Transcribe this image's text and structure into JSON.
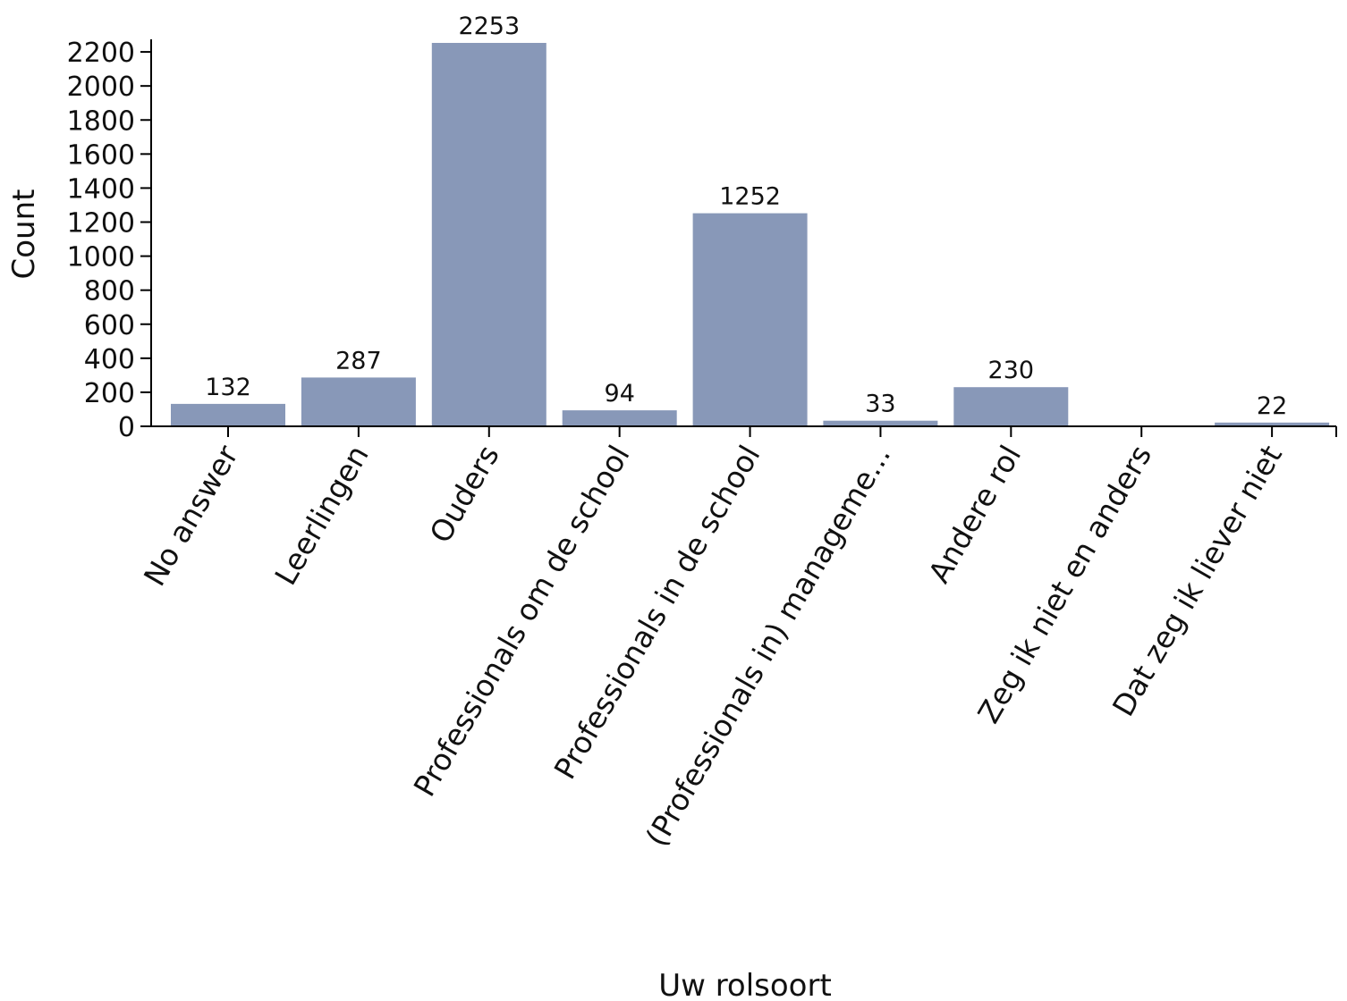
{
  "chart_data": {
    "type": "bar",
    "xlabel": "Uw rolsoort",
    "ylabel": "Count",
    "categories": [
      "No answer",
      "Leerlingen",
      "Ouders",
      "Professionals om de school",
      "Professionals in de school",
      "(Professionals in) manageme...",
      "Andere rol",
      "Zeg ik niet en anders",
      "Dat zeg ik liever niet"
    ],
    "values": [
      132,
      287,
      2253,
      94,
      1252,
      33,
      230,
      0,
      22
    ],
    "data_labels": [
      "132",
      "287",
      "2253",
      "94",
      "1252",
      "33",
      "230",
      "",
      "22"
    ],
    "ylim": [
      0,
      2253
    ],
    "yticks": [
      0,
      200,
      400,
      600,
      800,
      1000,
      1200,
      1400,
      1600,
      1800,
      2000,
      2200
    ],
    "bar_color": "#8898b8",
    "grid": false,
    "legend": "none"
  }
}
